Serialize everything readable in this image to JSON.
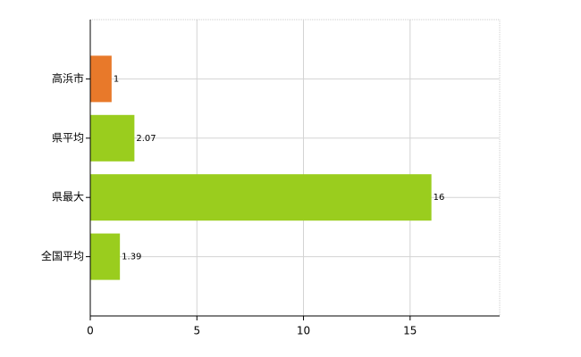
{
  "chart_data": {
    "type": "bar",
    "orientation": "horizontal",
    "categories": [
      "高浜市",
      "県平均",
      "県最大",
      "全国平均"
    ],
    "values": [
      1,
      2.07,
      16,
      1.39
    ],
    "colors": [
      "#e8792a",
      "#9acd1e",
      "#9acd1e",
      "#9acd1e"
    ],
    "xlim": [
      0,
      19.2
    ],
    "xticks": [
      0,
      5,
      10,
      15
    ],
    "grid": true
  }
}
